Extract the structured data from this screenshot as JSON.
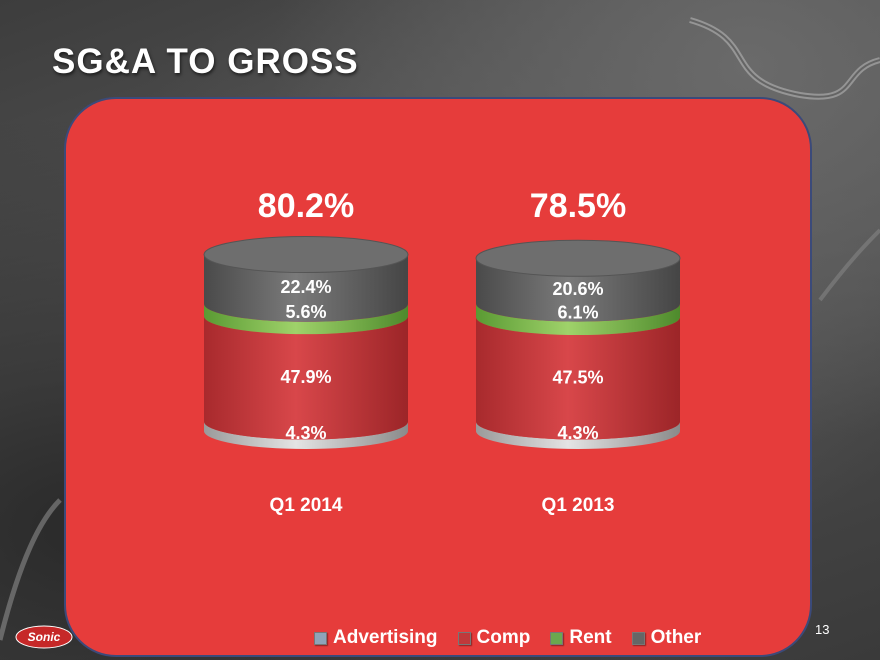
{
  "slide": {
    "title": "SG&A TO GROSS",
    "page_number": "13",
    "logo_text": "Sonic"
  },
  "legend": [
    {
      "name": "Advertising",
      "color": "#8fa3b8"
    },
    {
      "name": "Comp",
      "color": "#c0393b"
    },
    {
      "name": "Rent",
      "color": "#6aa84f"
    },
    {
      "name": "Other",
      "color": "#666666"
    }
  ],
  "chart_data": {
    "type": "bar",
    "stacked": true,
    "style": "3d-cylinder",
    "categories": [
      "Q1 2014",
      "Q1 2013"
    ],
    "totals": [
      "80.2%",
      "78.5%"
    ],
    "series": [
      {
        "name": "Advertising",
        "values": [
          4.3,
          4.3
        ],
        "labels": [
          "4.3%",
          "4.3%"
        ],
        "color": "#b0b0b0"
      },
      {
        "name": "Comp",
        "values": [
          47.9,
          47.5
        ],
        "labels": [
          "47.9%",
          "47.5%"
        ],
        "color": "#c8393b"
      },
      {
        "name": "Rent",
        "values": [
          5.6,
          6.1
        ],
        "labels": [
          "5.6%",
          "6.1%"
        ],
        "color": "#7fb64a"
      },
      {
        "name": "Other",
        "values": [
          22.4,
          20.6
        ],
        "labels": [
          "22.4%",
          "20.6%"
        ],
        "color": "#6b6b6b"
      }
    ],
    "legend_position": "bottom",
    "grid": false
  }
}
